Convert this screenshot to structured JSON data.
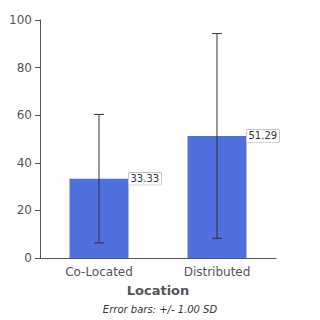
{
  "chart_data": {
    "type": "bar",
    "categories": [
      "Co-Located",
      "Distributed"
    ],
    "values": [
      33.33,
      51.29
    ],
    "errors": [
      27.0,
      43.0
    ],
    "data_labels": true,
    "xlabel": "Location",
    "annotation": "Error bars: +/- 1.00 SD",
    "ylim": [
      0,
      100
    ],
    "yticks": [
      0,
      20,
      40,
      60,
      80,
      100
    ],
    "grid": false
  }
}
